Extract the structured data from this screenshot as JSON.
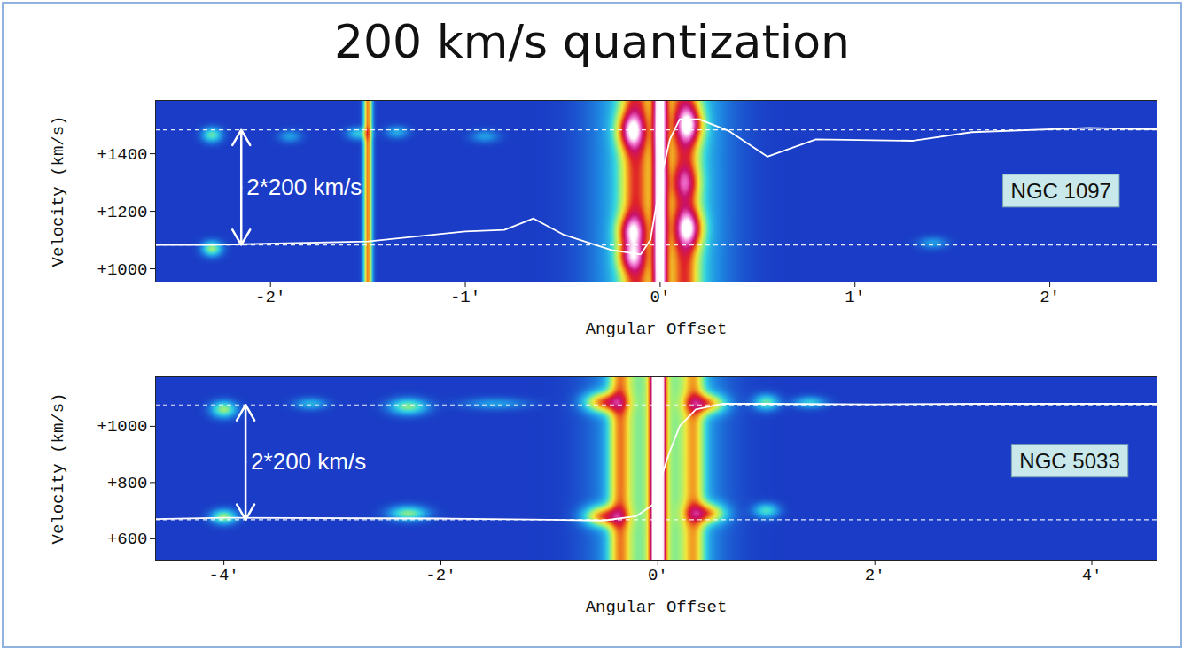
{
  "title": "200 km/s quantization",
  "chart_data": [
    {
      "type": "heatmap",
      "xlabel": "Angular Offset",
      "ylabel": "Velocity (km/s)",
      "xlim": [
        -2.59,
        2.55
      ],
      "ylim": [
        954,
        1585
      ],
      "xticks": [
        {
          "value": -2,
          "label": "-2′"
        },
        {
          "value": -1,
          "label": "-1′"
        },
        {
          "value": 0,
          "label": "0′"
        },
        {
          "value": 1,
          "label": "1′"
        },
        {
          "value": 2,
          "label": "2′"
        }
      ],
      "yticks": [
        {
          "value": 1000,
          "label": "+1000"
        },
        {
          "value": 1200,
          "label": "+1200"
        },
        {
          "value": 1400,
          "label": "+1400"
        }
      ],
      "intensity_lim": [
        0,
        1
      ],
      "background_intensity": 0.1,
      "emission": [
        {
          "x": 0,
          "y": 1270,
          "sx": 0.2,
          "sy": 5000,
          "intensity": 0.3
        },
        {
          "x": -0.13,
          "y": 1270,
          "sx": 0.05,
          "sy": 5000,
          "intensity": 0.35
        },
        {
          "x": 0.13,
          "y": 1270,
          "sx": 0.05,
          "sy": 5000,
          "intensity": 0.35
        },
        {
          "x": 0,
          "y": 1270,
          "sx": 0.025,
          "sy": 5000,
          "intensity": 0.75
        },
        {
          "x": -0.15,
          "y": 1480,
          "sx": 0.05,
          "sy": 45,
          "intensity": 0.4
        },
        {
          "x": -0.15,
          "y": 1130,
          "sx": 0.05,
          "sy": 40,
          "intensity": 0.35
        },
        {
          "x": -0.15,
          "y": 1040,
          "sx": 0.05,
          "sy": 35,
          "intensity": 0.3
        },
        {
          "x": 0.15,
          "y": 1500,
          "sx": 0.05,
          "sy": 45,
          "intensity": 0.4
        },
        {
          "x": 0.15,
          "y": 1140,
          "sx": 0.05,
          "sy": 45,
          "intensity": 0.4
        },
        {
          "x": 0.13,
          "y": 1300,
          "sx": 0.05,
          "sy": 40,
          "intensity": 0.2
        },
        {
          "x": -1.5,
          "y": 1270,
          "sx": 0.015,
          "sy": 5000,
          "intensity": 0.52
        },
        {
          "x": -2.3,
          "y": 1465,
          "sx": 0.035,
          "sy": 18,
          "intensity": 0.25
        },
        {
          "x": -2.3,
          "y": 1070,
          "sx": 0.035,
          "sy": 18,
          "intensity": 0.3
        },
        {
          "x": -1.55,
          "y": 1470,
          "sx": 0.04,
          "sy": 15,
          "intensity": 0.18
        },
        {
          "x": -1.35,
          "y": 1475,
          "sx": 0.04,
          "sy": 15,
          "intensity": 0.14
        },
        {
          "x": -1.9,
          "y": 1460,
          "sx": 0.04,
          "sy": 15,
          "intensity": 0.12
        },
        {
          "x": -0.9,
          "y": 1460,
          "sx": 0.05,
          "sy": 15,
          "intensity": 0.12
        },
        {
          "x": 1.4,
          "y": 1090,
          "sx": 0.05,
          "sy": 15,
          "intensity": 0.12
        }
      ],
      "curve": {
        "color": "#ffffff",
        "x": [
          -2.59,
          -2.3,
          -1.5,
          -1.0,
          -0.8,
          -0.65,
          -0.5,
          -0.25,
          -0.1,
          -0.05,
          0,
          0.05,
          0.1,
          0.2,
          0.35,
          0.55,
          0.8,
          1.3,
          1.6,
          2.2,
          2.55
        ],
        "y": [
          1083,
          1083,
          1095,
          1130,
          1135,
          1175,
          1120,
          1065,
          1050,
          1100,
          1300,
          1450,
          1520,
          1520,
          1480,
          1390,
          1450,
          1445,
          1475,
          1490,
          1485
        ]
      },
      "reference_lines": {
        "values": [
          1083,
          1483
        ],
        "line_style": "dashed",
        "color": "#ffffff"
      },
      "annotation": {
        "text": "2*200 km/s",
        "x": -2.15,
        "y1": 1083,
        "y2": 1483
      },
      "label": {
        "text": "NGC 1097",
        "x": 2.06,
        "y": 1270
      }
    },
    {
      "type": "heatmap",
      "xlabel": "Angular Offset",
      "ylabel": "Velocity (km/s)",
      "xlim": [
        -4.63,
        4.6
      ],
      "ylim": [
        524,
        1176
      ],
      "xticks": [
        {
          "value": -4,
          "label": "-4′"
        },
        {
          "value": -2,
          "label": "-2′"
        },
        {
          "value": 0,
          "label": "0′"
        },
        {
          "value": 2,
          "label": "2′"
        },
        {
          "value": 4,
          "label": "4′"
        }
      ],
      "yticks": [
        {
          "value": 600,
          "label": "+600"
        },
        {
          "value": 800,
          "label": "+800"
        },
        {
          "value": 1000,
          "label": "+1000"
        }
      ],
      "intensity_lim": [
        0,
        1
      ],
      "background_intensity": 0.1,
      "emission": [
        {
          "x": 0,
          "y": 870,
          "sx": 0.33,
          "sy": 5000,
          "intensity": 0.3
        },
        {
          "x": -0.35,
          "y": 870,
          "sx": 0.07,
          "sy": 5000,
          "intensity": 0.35
        },
        {
          "x": 0.33,
          "y": 870,
          "sx": 0.07,
          "sy": 5000,
          "intensity": 0.3
        },
        {
          "x": 0,
          "y": 870,
          "sx": 0.045,
          "sy": 5000,
          "intensity": 1.1
        },
        {
          "x": -0.5,
          "y": 1085,
          "sx": 0.12,
          "sy": 25,
          "intensity": 0.45
        },
        {
          "x": 0.45,
          "y": 1080,
          "sx": 0.12,
          "sy": 25,
          "intensity": 0.4
        },
        {
          "x": -0.5,
          "y": 680,
          "sx": 0.12,
          "sy": 25,
          "intensity": 0.45
        },
        {
          "x": 0.45,
          "y": 690,
          "sx": 0.12,
          "sy": 25,
          "intensity": 0.4
        },
        {
          "x": -4.0,
          "y": 1060,
          "sx": 0.08,
          "sy": 20,
          "intensity": 0.3
        },
        {
          "x": -4.0,
          "y": 678,
          "sx": 0.08,
          "sy": 18,
          "intensity": 0.3
        },
        {
          "x": -2.3,
          "y": 1070,
          "sx": 0.12,
          "sy": 20,
          "intensity": 0.28
        },
        {
          "x": -2.3,
          "y": 690,
          "sx": 0.12,
          "sy": 18,
          "intensity": 0.28
        },
        {
          "x": -3.2,
          "y": 1080,
          "sx": 0.1,
          "sy": 15,
          "intensity": 0.15
        },
        {
          "x": -1.5,
          "y": 1080,
          "sx": 0.2,
          "sy": 15,
          "intensity": 0.12
        },
        {
          "x": 1.0,
          "y": 1085,
          "sx": 0.08,
          "sy": 20,
          "intensity": 0.25
        },
        {
          "x": 1.0,
          "y": 700,
          "sx": 0.08,
          "sy": 18,
          "intensity": 0.22
        },
        {
          "x": 1.4,
          "y": 1085,
          "sx": 0.1,
          "sy": 15,
          "intensity": 0.18
        }
      ],
      "curve": {
        "color": "#ffffff",
        "x": [
          -4.63,
          -4.0,
          -2.0,
          -1.0,
          -0.5,
          -0.2,
          -0.05,
          0.1,
          0.2,
          0.35,
          0.6,
          1.0,
          2.0,
          3.0,
          4.0,
          4.6
        ],
        "y": [
          670,
          675,
          672,
          668,
          665,
          680,
          720,
          900,
          1000,
          1060,
          1080,
          1080,
          1078,
          1080,
          1080,
          1080
        ]
      },
      "reference_lines": {
        "values": [
          668,
          1076
        ],
        "line_style": "dashed",
        "color": "#ffffff"
      },
      "annotation": {
        "text": "2*200 km/s",
        "x": -3.8,
        "y1": 668,
        "y2": 1076
      },
      "label": {
        "text": "NGC 5033",
        "x": 3.8,
        "y": 876
      }
    }
  ]
}
